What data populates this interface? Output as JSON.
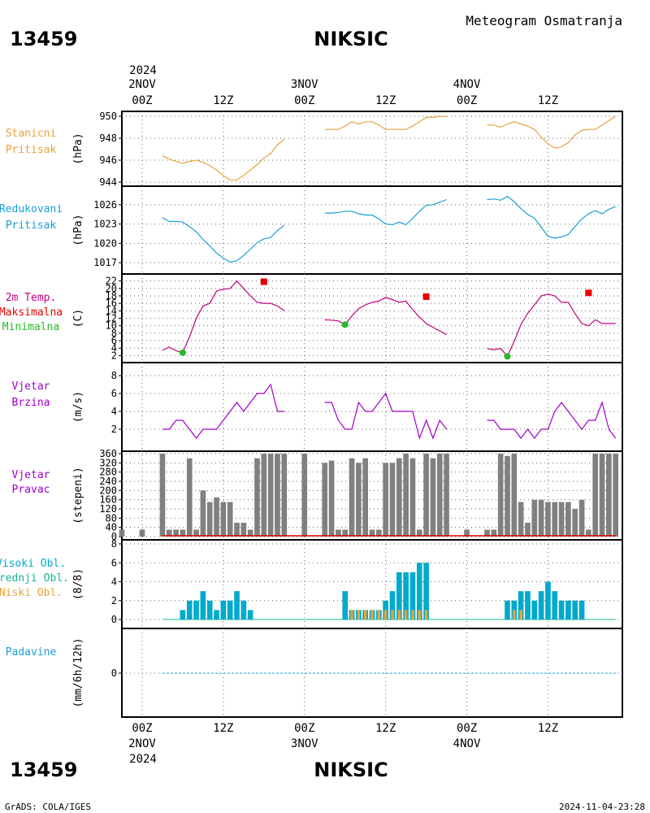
{
  "header": {
    "station_id": "13459",
    "station_name": "NIKSIC",
    "meteogram_label": "Meteogram Osmatranja",
    "footer_left": "GrADS: COLA/IGES",
    "footer_right": "2024-11-04-23:28"
  },
  "colors": {
    "pressure": "#e8a33d",
    "reduced": "#1a9fd6",
    "temp_line": "#c0007a",
    "tmax": "#e60000",
    "tmin": "#22bb22",
    "wind_speed": "#a000c8",
    "wind_dir": "#808080",
    "cloud_high": "#00aacc",
    "cloud_mid": "#1ab394",
    "cloud_low": "#e8a33d",
    "precip": "#1a9fd6"
  },
  "chart_data": {
    "type": "line",
    "time_axis": {
      "top_year": "2024",
      "top_days": [
        "2NOV",
        "3NOV",
        "4NOV"
      ],
      "bottom_days": [
        "2NOV",
        "3NOV",
        "4NOV"
      ],
      "bottom_year": "2024",
      "hour_labels": [
        "00Z",
        "12Z",
        "00Z",
        "12Z",
        "00Z",
        "12Z"
      ],
      "hour_values": [
        0,
        12,
        24,
        36,
        48,
        60
      ]
    },
    "panels": [
      {
        "id": "station_pressure",
        "labels": [
          "Stanicni",
          "Pritisak"
        ],
        "label_colors": [
          "#e8a33d",
          "#e8a33d"
        ],
        "unit": "(hPa)",
        "ylim": [
          944,
          950
        ],
        "yticks": [
          944,
          946,
          948,
          950
        ],
        "series": [
          {
            "color": "#e8a33d",
            "t": [
              3,
              4,
              5,
              6,
              7,
              8,
              9,
              10,
              11,
              12,
              13,
              14,
              15,
              16,
              17,
              18,
              19,
              20,
              21
            ],
            "v": [
              946.4,
              946.1,
              945.9,
              945.7,
              945.9,
              946.0,
              945.8,
              945.5,
              945.1,
              944.6,
              944.2,
              944.2,
              944.6,
              945.1,
              945.6,
              946.2,
              946.6,
              947.4,
              947.9
            ]
          },
          {
            "color": "#e8a33d",
            "t": [
              27,
              28,
              29,
              30,
              31,
              32,
              33,
              34,
              35,
              36,
              37,
              38,
              39,
              40,
              41,
              42,
              43,
              44,
              45
            ],
            "v": [
              948.8,
              948.8,
              948.8,
              949.1,
              949.5,
              949.3,
              949.5,
              949.5,
              949.2,
              948.8,
              948.8,
              948.8,
              948.8,
              949.1,
              949.5,
              949.9,
              949.9,
              950.0,
              950.0
            ]
          },
          {
            "color": "#e8a33d",
            "t": [
              51,
              52,
              53,
              54,
              55,
              56,
              57,
              58,
              59,
              60,
              61,
              62,
              63,
              64,
              65,
              66,
              67,
              68,
              69,
              70
            ],
            "v": [
              949.2,
              949.2,
              949.0,
              949.3,
              949.5,
              949.3,
              949.1,
              948.8,
              948.1,
              947.5,
              947.1,
              947.2,
              947.6,
              948.3,
              948.7,
              948.8,
              948.8,
              949.2,
              949.6,
              950.0
            ]
          }
        ]
      },
      {
        "id": "reduced_pressure",
        "labels": [
          "Redukovani",
          "Pritisak"
        ],
        "label_colors": [
          "#1a9fd6",
          "#1a9fd6"
        ],
        "unit": "(hPa)",
        "ylim": [
          1016,
          1028
        ],
        "yticks": [
          1017,
          1020,
          1023,
          1026
        ],
        "series": [
          {
            "color": "#1a9fd6",
            "t": [
              3,
              4,
              5,
              6,
              7,
              8,
              9,
              10,
              11,
              12,
              13,
              14,
              15,
              16,
              17,
              18,
              19,
              20,
              21
            ],
            "v": [
              1024.0,
              1023.4,
              1023.4,
              1023.3,
              1022.6,
              1021.8,
              1020.6,
              1019.6,
              1018.5,
              1017.7,
              1017.1,
              1017.3,
              1018.1,
              1019.1,
              1020.1,
              1020.7,
              1020.9,
              1022.0,
              1022.8
            ]
          },
          {
            "color": "#1a9fd6",
            "t": [
              27,
              28,
              29,
              30,
              31,
              32,
              33,
              34,
              35,
              36,
              37,
              38,
              39,
              40,
              41,
              42,
              43,
              44,
              45
            ],
            "v": [
              1024.7,
              1024.7,
              1024.8,
              1025.0,
              1025.0,
              1024.6,
              1024.4,
              1024.4,
              1023.8,
              1023.0,
              1022.9,
              1023.3,
              1022.9,
              1023.9,
              1025.0,
              1025.9,
              1026.0,
              1026.4,
              1026.8
            ]
          },
          {
            "color": "#1a9fd6",
            "t": [
              51,
              52,
              53,
              54,
              55,
              56,
              57,
              58,
              59,
              60,
              61,
              62,
              63,
              64,
              65,
              66,
              67,
              68,
              69,
              70
            ],
            "v": [
              1026.8,
              1026.9,
              1026.7,
              1027.3,
              1026.5,
              1025.4,
              1024.5,
              1023.9,
              1022.5,
              1021.1,
              1020.8,
              1021.0,
              1021.4,
              1022.6,
              1023.8,
              1024.6,
              1025.1,
              1024.6,
              1025.3,
              1025.7
            ]
          }
        ]
      },
      {
        "id": "temperature",
        "labels": [
          "2m Temp.",
          "Maksimalna",
          "Minimalna"
        ],
        "label_colors": [
          "#c0007a",
          "#e60000",
          "#22bb22"
        ],
        "unit": "(C)",
        "ylim": [
          1,
          23
        ],
        "yticks": [
          2,
          4,
          6,
          8,
          10,
          12,
          14,
          16,
          18,
          20,
          22
        ],
        "series": [
          {
            "color": "#c0007a",
            "t": [
              3,
              4,
              5,
              6,
              7,
              8,
              9,
              10,
              11,
              12,
              13,
              14,
              15,
              16,
              17,
              18,
              19,
              20,
              21
            ],
            "v": [
              3.4,
              4.3,
              3.3,
              2.8,
              7.0,
              12.0,
              15.3,
              16.0,
              19.3,
              19.8,
              20.0,
              22.0,
              20.0,
              18.0,
              16.3,
              16.0,
              16.0,
              15.3,
              14.0
            ]
          },
          {
            "color": "#c0007a",
            "t": [
              27,
              28,
              29,
              30,
              31,
              32,
              33,
              34,
              35,
              36,
              37,
              38,
              39,
              40,
              41,
              42,
              43,
              44,
              45
            ],
            "v": [
              11.6,
              11.5,
              11.3,
              10.3,
              12.6,
              14.6,
              15.6,
              16.3,
              16.6,
              17.6,
              17.0,
              16.3,
              16.6,
              14.3,
              12.3,
              10.6,
              9.6,
              8.6,
              7.6
            ]
          },
          {
            "color": "#c0007a",
            "t": [
              51,
              52,
              53,
              54,
              55,
              56,
              57,
              58,
              59,
              60,
              61,
              62,
              63,
              64,
              65,
              66,
              67,
              68,
              69,
              70
            ],
            "v": [
              3.9,
              3.6,
              3.9,
              1.8,
              5.8,
              10.3,
              13.3,
              15.6,
              18.0,
              18.5,
              18.0,
              16.3,
              16.3,
              13.3,
              10.6,
              10.0,
              11.6,
              10.6,
              10.6,
              10.6
            ]
          }
        ],
        "tmax": [
          {
            "t": 18,
            "v": 21.8
          },
          {
            "t": 42,
            "v": 17.8
          },
          {
            "t": 66,
            "v": 18.8
          }
        ],
        "tmin": [
          {
            "t": 6,
            "v": 2.8
          },
          {
            "t": 30,
            "v": 10.3
          },
          {
            "t": 54,
            "v": 1.8
          }
        ]
      },
      {
        "id": "wind_speed",
        "labels": [
          "Vjetar",
          "Brzina"
        ],
        "label_colors": [
          "#a000c8",
          "#a000c8"
        ],
        "unit": "(m/s)",
        "ylim": [
          0,
          9
        ],
        "yticks": [
          2,
          4,
          6,
          8
        ],
        "series": [
          {
            "color": "#a000c8",
            "t": [
              3,
              4,
              5,
              6,
              7,
              8,
              9,
              10,
              11,
              12,
              13,
              14,
              15,
              16,
              17,
              18,
              19,
              20,
              21
            ],
            "v": [
              2,
              2,
              3,
              3,
              2,
              1,
              2,
              2,
              2,
              3,
              4,
              5,
              4,
              5,
              6,
              6,
              7,
              4,
              4
            ]
          },
          {
            "color": "#a000c8",
            "t": [
              27,
              28,
              29,
              30,
              31,
              32,
              33,
              34,
              35,
              36,
              37,
              38,
              39,
              40,
              41,
              42,
              43,
              44,
              45
            ],
            "v": [
              5,
              5,
              3,
              2,
              2,
              5,
              4,
              4,
              5,
              6,
              4,
              4,
              4,
              4,
              1,
              3,
              1,
              3,
              2
            ]
          },
          {
            "color": "#a000c8",
            "t": [
              51,
              52,
              53,
              54,
              55,
              56,
              57,
              58,
              59,
              60,
              61,
              62,
              63,
              64,
              65,
              66,
              67,
              68,
              69,
              70
            ],
            "v": [
              3,
              3,
              2,
              2,
              2,
              1,
              2,
              1,
              2,
              2,
              4,
              5,
              4,
              3,
              2,
              3,
              3,
              5,
              2,
              1
            ]
          }
        ]
      },
      {
        "id": "wind_direction",
        "labels": [
          "Vjetar",
          "Pravac"
        ],
        "label_colors": [
          "#a000c8",
          "#a000c8"
        ],
        "unit": "(stepeni)",
        "ylim": [
          0,
          360
        ],
        "yticks": [
          0,
          40,
          80,
          120,
          160,
          200,
          240,
          280,
          320,
          360
        ],
        "bars": {
          "color": "#808080",
          "t": [
            -3,
            0,
            3,
            4,
            5,
            6,
            7,
            8,
            9,
            10,
            11,
            12,
            13,
            14,
            15,
            16,
            17,
            18,
            19,
            20,
            21,
            24,
            27,
            28,
            29,
            30,
            31,
            32,
            33,
            34,
            35,
            36,
            37,
            38,
            39,
            40,
            41,
            42,
            43,
            44,
            45,
            48,
            51,
            52,
            53,
            54,
            55,
            56,
            57,
            58,
            59,
            60,
            61,
            62,
            63,
            64,
            65,
            66,
            67,
            68,
            69,
            70
          ],
          "v": [
            30,
            30,
            360,
            30,
            30,
            30,
            340,
            30,
            200,
            150,
            170,
            150,
            150,
            60,
            60,
            30,
            340,
            360,
            360,
            360,
            360,
            360,
            320,
            330,
            30,
            30,
            340,
            320,
            340,
            30,
            30,
            320,
            320,
            340,
            360,
            340,
            30,
            360,
            340,
            360,
            360,
            30,
            30,
            30,
            360,
            350,
            360,
            150,
            60,
            160,
            160,
            150,
            150,
            150,
            150,
            120,
            160,
            30,
            360,
            360,
            360,
            360
          ]
        },
        "calm_line": {
          "color": "#e60000",
          "t0": 3,
          "t1": 70
        }
      },
      {
        "id": "clouds",
        "labels": [
          "Visoki Obl.",
          "Srednji Obl.",
          "Niski Obl."
        ],
        "label_colors": [
          "#00aacc",
          "#1ab394",
          "#e8a33d"
        ],
        "unit": "(8/8)",
        "ylim": [
          0,
          8
        ],
        "yticks": [
          0,
          2,
          4,
          6,
          8
        ],
        "high": {
          "t": [
            6,
            7,
            8,
            9,
            10,
            11,
            12,
            13,
            14,
            15,
            16,
            30,
            31,
            32,
            33,
            34,
            35,
            36,
            37,
            38,
            39,
            40,
            41,
            42,
            54,
            55,
            56,
            57,
            58,
            59,
            60,
            61,
            62,
            63,
            64,
            65
          ],
          "v": [
            1,
            2,
            2,
            3,
            2,
            1,
            2,
            2,
            3,
            2,
            1,
            3,
            1,
            1,
            1,
            1,
            1,
            2,
            3,
            5,
            5,
            5,
            6,
            6,
            2,
            2,
            3,
            3,
            2,
            3,
            4,
            3,
            2,
            2,
            2,
            2
          ]
        },
        "low": {
          "t": [
            31,
            32,
            33,
            34,
            35,
            36,
            37,
            38,
            39,
            40,
            41,
            42,
            55,
            56
          ],
          "v": [
            1,
            1,
            1,
            1,
            1,
            1,
            1,
            1,
            1,
            1,
            1,
            1,
            1,
            1
          ]
        }
      },
      {
        "id": "precipitation",
        "labels": [
          "Padavine"
        ],
        "label_colors": [
          "#1a9fd6"
        ],
        "unit": "(mm/6h/12h)",
        "ylim": [
          -1,
          1
        ],
        "yticks": [
          0
        ]
      }
    ]
  }
}
